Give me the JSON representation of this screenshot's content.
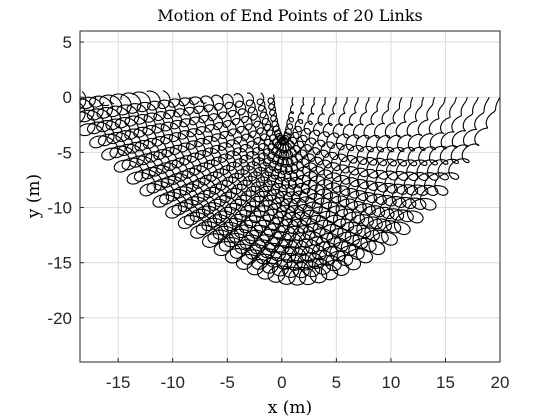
{
  "chart_data": {
    "type": "line",
    "title": "Motion of End Points of 20 Links",
    "xlabel": "x (m)",
    "ylabel": "y (m)",
    "xlim": [
      -18.5,
      20
    ],
    "ylim": [
      -24,
      6
    ],
    "xticks": [
      -15,
      -10,
      -5,
      0,
      5,
      10,
      15,
      20
    ],
    "yticks": [
      5,
      0,
      -5,
      -10,
      -15,
      -20
    ],
    "grid": true,
    "line_color": "#000000",
    "series_count": 20,
    "series_note": "20 trajectories (one per link end point); the k-th starts at (k, 0) and follows an elongated looping oscillation sweeping leftward and down; outermost envelope reaches about x = -18.5 and y = -19.8",
    "link_count": 20,
    "link_length": 1
  }
}
